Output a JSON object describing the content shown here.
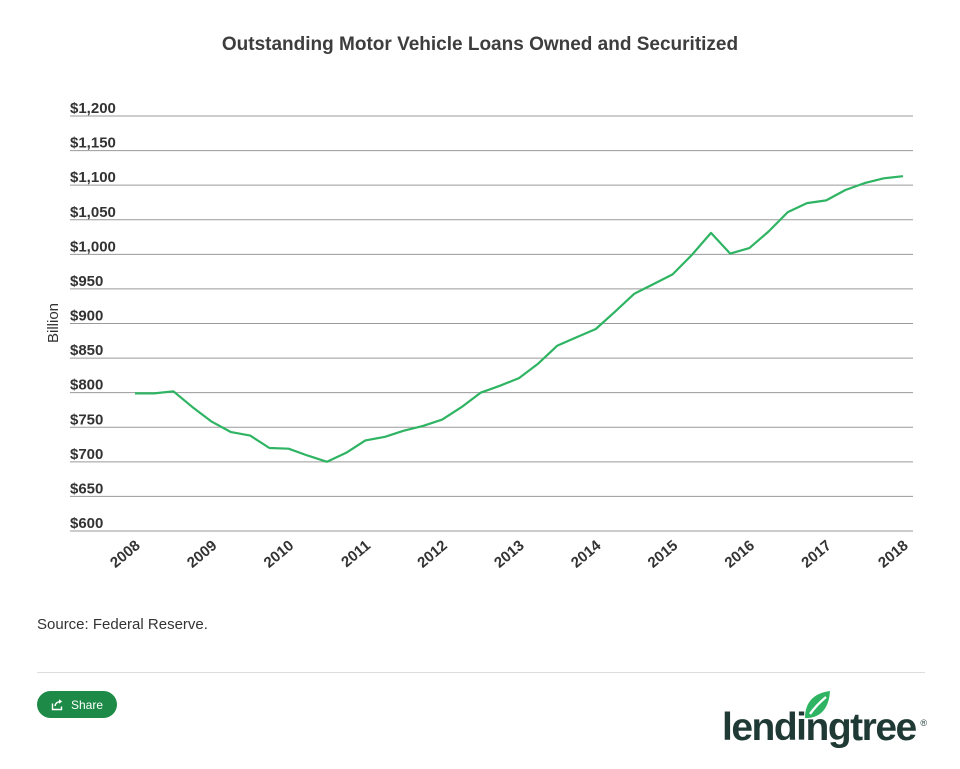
{
  "chart_data": {
    "type": "line",
    "title": "Outstanding Motor Vehicle Loans Owned and Securitized",
    "ylabel": "Billion",
    "ylim": [
      600,
      1200
    ],
    "yticks": [
      600,
      650,
      700,
      750,
      800,
      850,
      900,
      950,
      1000,
      1050,
      1100,
      1150,
      1200
    ],
    "ytick_labels": [
      "$600",
      "$650",
      "$700",
      "$750",
      "$800",
      "$850",
      "$900",
      "$950",
      "$1,000",
      "$1,050",
      "$1,100",
      "$1,150",
      "$1,200"
    ],
    "xticks": [
      2008,
      2009,
      2010,
      2011,
      2012,
      2013,
      2014,
      2015,
      2016,
      2017,
      2018
    ],
    "xtick_labels": [
      "2008",
      "2009",
      "2010",
      "2011",
      "2012",
      "2013",
      "2014",
      "2015",
      "2016",
      "2017",
      "2018"
    ],
    "grid": true,
    "color": "#2eb462",
    "series": [
      {
        "x": [
          2008.0,
          2008.25,
          2008.5,
          2008.75,
          2009.0,
          2009.25,
          2009.5,
          2009.75,
          2010.0,
          2010.25,
          2010.5,
          2010.75,
          2011.0,
          2011.25,
          2011.5,
          2011.75,
          2012.0,
          2012.25,
          2012.5,
          2012.75,
          2013.0,
          2013.25,
          2013.5,
          2013.75,
          2014.0,
          2014.25,
          2014.5,
          2014.75,
          2015.0,
          2015.25,
          2015.5,
          2015.75,
          2016.0,
          2016.25,
          2016.5,
          2016.75,
          2017.0,
          2017.25,
          2017.5,
          2017.75,
          2018.0
        ],
        "values": [
          799,
          799,
          802,
          779,
          758,
          743,
          738,
          720,
          719,
          709,
          700,
          713,
          731,
          736,
          745,
          752,
          761,
          779,
          800,
          810,
          821,
          842,
          868,
          880,
          892,
          917,
          943,
          957,
          971,
          999,
          1031,
          1001,
          1009,
          1033,
          1061,
          1074,
          1078,
          1093,
          1103,
          1110,
          1113
        ]
      }
    ]
  },
  "source": "Source: Federal Reserve.",
  "share": {
    "label": "Share",
    "icon": "share-icon"
  },
  "logo": {
    "text": "lendingtree",
    "mark": "®",
    "color": "#1f3a35",
    "leaf_color": "#2eb462"
  }
}
